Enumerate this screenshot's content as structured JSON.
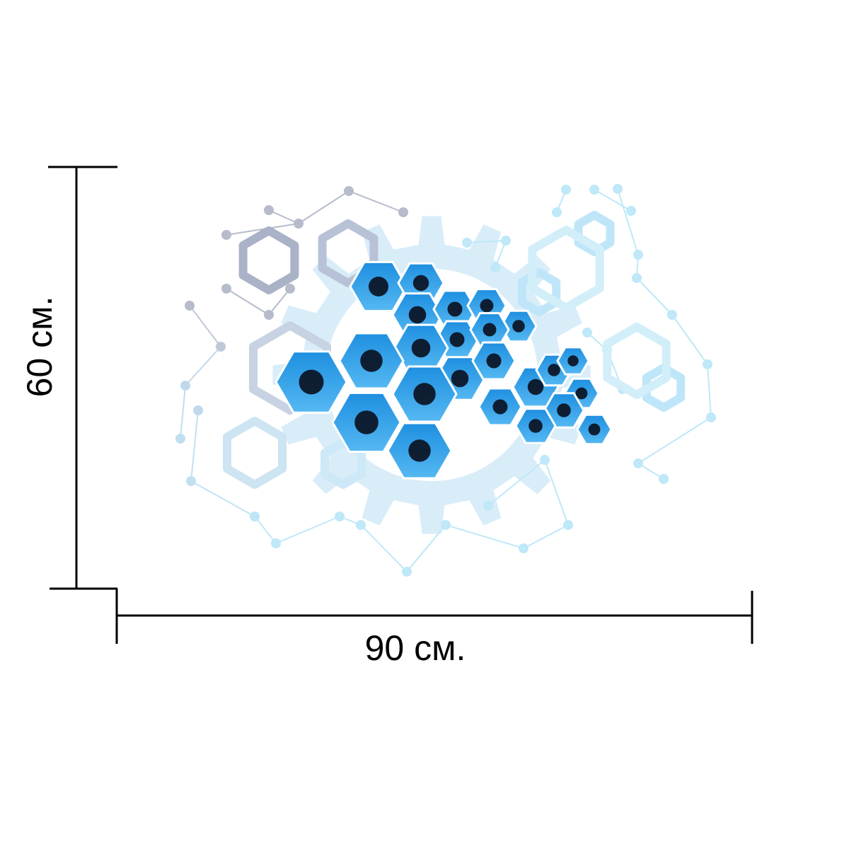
{
  "height_label": "60 см.",
  "width_label": "90 см."
}
